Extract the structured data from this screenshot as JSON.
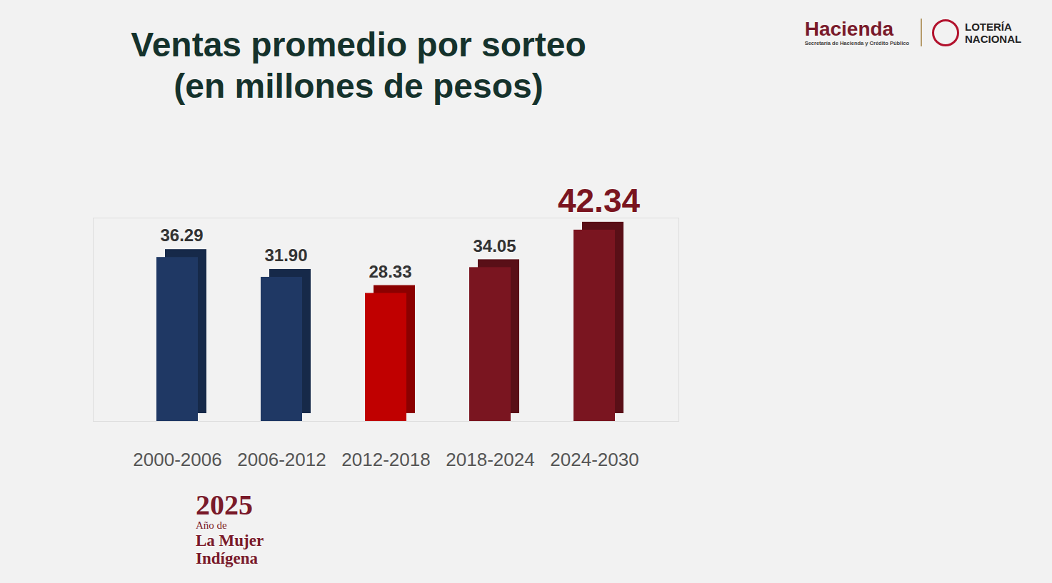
{
  "chart_data": {
    "type": "bar",
    "title": "Ventas promedio por sorteo",
    "subtitle": "(en millones de pesos)",
    "categories": [
      "2000-2006",
      "2006-2012",
      "2012-2018",
      "2018-2024",
      "2024-2030"
    ],
    "values": [
      36.29,
      31.9,
      28.33,
      34.05,
      42.34
    ],
    "value_labels": [
      "36.29",
      "31.90",
      "28.33",
      "34.05",
      "42.34"
    ],
    "colors": [
      "#1f3864",
      "#1f3864",
      "#c00000",
      "#7a1520",
      "#7a1520"
    ],
    "ylim": [
      0,
      45
    ],
    "yticks": [],
    "tick_labels": "x",
    "data_labels": true,
    "grid": false,
    "logos": {
      "hacienda": "Hacienda",
      "hacienda_subtitle": "Secretaría de Hacienda y Crédito Público",
      "loteria": "LOTERÍA NACIONAL"
    },
    "footer": {
      "year": "2025",
      "line1": "Año de",
      "line2": "La Mujer Indígena"
    }
  }
}
